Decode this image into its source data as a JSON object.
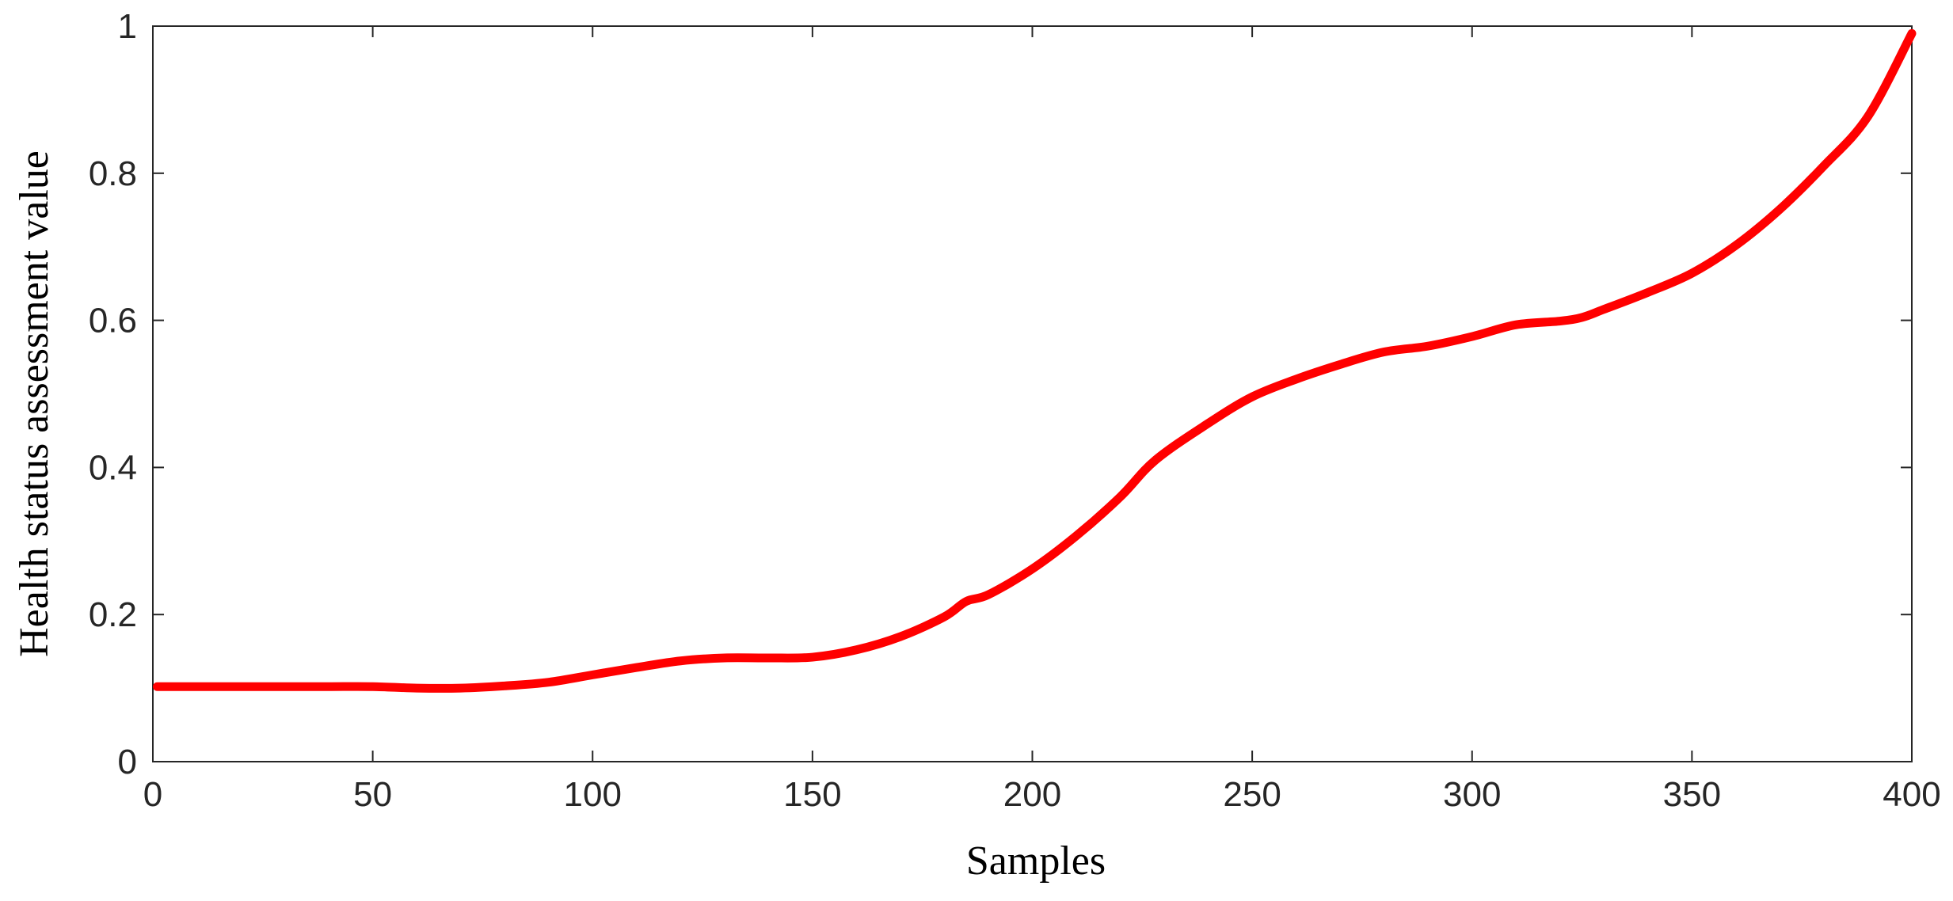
{
  "chart_data": {
    "type": "line",
    "title": "",
    "xlabel": "Samples",
    "ylabel": "Health status assessment value",
    "xlim": [
      0,
      400
    ],
    "ylim": [
      0,
      1
    ],
    "xticks": [
      0,
      50,
      100,
      150,
      200,
      250,
      300,
      350,
      400
    ],
    "yticks": [
      0,
      0.2,
      0.4,
      0.6,
      0.8,
      1
    ],
    "xtick_labels": [
      "0",
      "50",
      "100",
      "150",
      "200",
      "250",
      "300",
      "350",
      "400"
    ],
    "ytick_labels": [
      "0",
      "0.2",
      "0.4",
      "0.6",
      "0.8",
      "1"
    ],
    "grid": false,
    "legend": "none",
    "series": [
      {
        "color": "#ff0000",
        "x": [
          1,
          10,
          20,
          30,
          40,
          50,
          60,
          70,
          80,
          90,
          100,
          110,
          120,
          130,
          140,
          150,
          160,
          170,
          180,
          185,
          190,
          200,
          210,
          220,
          228,
          240,
          250,
          260,
          270,
          280,
          290,
          300,
          310,
          320,
          325,
          330,
          340,
          350,
          360,
          370,
          380,
          390,
          400
        ],
        "y": [
          0.102,
          0.102,
          0.102,
          0.102,
          0.102,
          0.102,
          0.1,
          0.1,
          0.103,
          0.108,
          0.118,
          0.128,
          0.137,
          0.141,
          0.141,
          0.142,
          0.152,
          0.17,
          0.197,
          0.218,
          0.227,
          0.262,
          0.307,
          0.36,
          0.41,
          0.46,
          0.496,
          0.52,
          0.54,
          0.557,
          0.565,
          0.578,
          0.594,
          0.599,
          0.604,
          0.615,
          0.638,
          0.664,
          0.702,
          0.751,
          0.81,
          0.877,
          0.99
        ]
      }
    ]
  }
}
